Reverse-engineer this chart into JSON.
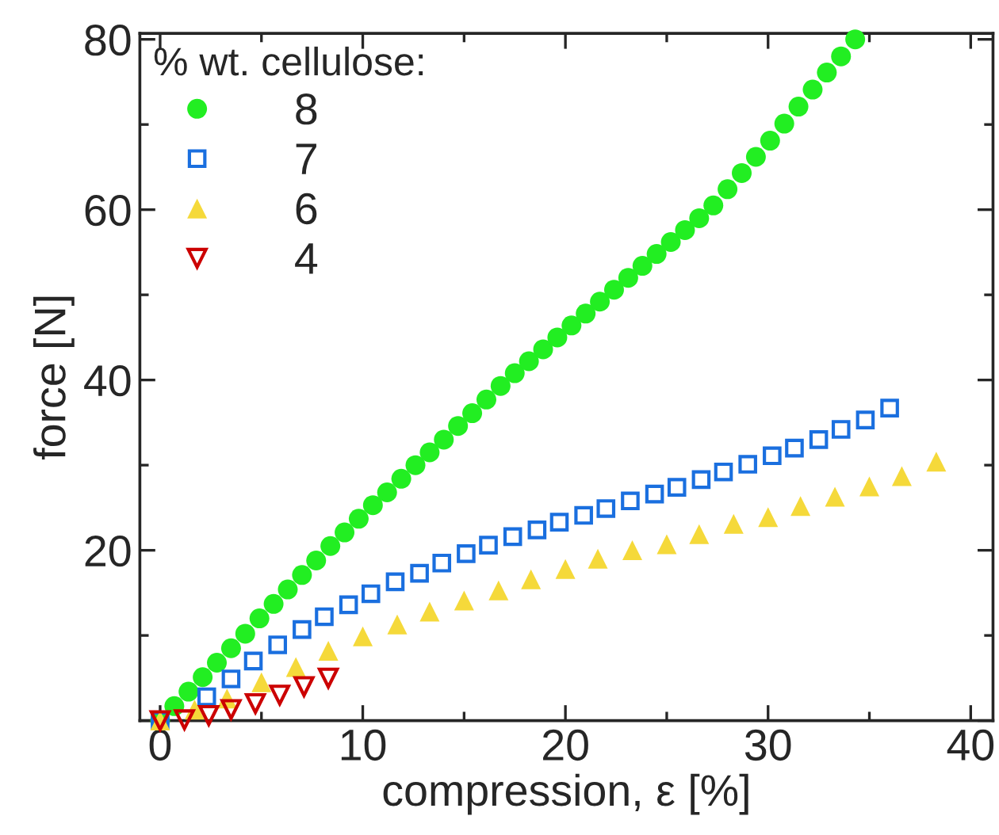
{
  "chart_data": {
    "type": "scatter",
    "xlabel": "compression, ε [%]",
    "ylabel": "force [N]",
    "legend_title": "% wt. cellulose:",
    "xlim": [
      -1,
      41.1
    ],
    "ylim": [
      0,
      80.7
    ],
    "xticks": [
      0,
      10,
      20,
      30,
      40
    ],
    "yticks": [
      {
        "value": 0,
        "label": null
      },
      20,
      40,
      60,
      80
    ],
    "grid": false,
    "legend": "top left",
    "series": [
      {
        "name": "8",
        "color": "#22ee22",
        "marker": "circle",
        "x": [
          0,
          0.7,
          1.4,
          2.1,
          2.8,
          3.5,
          4.2,
          4.9,
          5.6,
          6.3,
          7.0,
          7.7,
          8.4,
          9.1,
          9.8,
          10.5,
          11.2,
          11.9,
          12.6,
          13.3,
          14.0,
          14.7,
          15.4,
          16.1,
          16.8,
          17.5,
          18.2,
          18.9,
          19.6,
          20.3,
          21.0,
          21.7,
          22.4,
          23.1,
          23.8,
          24.5,
          25.2,
          25.9,
          26.6,
          27.3,
          28.0,
          28.7,
          29.4,
          30.1,
          30.8,
          31.5,
          32.2,
          32.9,
          33.6,
          34.3
        ],
        "values": [
          0,
          1.7,
          3.4,
          5.1,
          6.8,
          8.5,
          10.2,
          12.0,
          13.7,
          15.4,
          17.1,
          18.8,
          20.5,
          22.1,
          23.7,
          25.3,
          26.8,
          28.4,
          30.0,
          31.5,
          33.0,
          34.6,
          36.1,
          37.7,
          39.3,
          40.8,
          42.2,
          43.6,
          45.0,
          46.4,
          47.8,
          49.2,
          50.6,
          52.0,
          53.4,
          54.8,
          56.2,
          57.6,
          59.0,
          60.5,
          62.4,
          64.3,
          66.2,
          68.1,
          70.1,
          72.1,
          74.1,
          76.1,
          78.0,
          80.0
        ]
      },
      {
        "name": "7",
        "color": "#1a6fdf",
        "marker": "square",
        "x": [
          0,
          1.2,
          2.3,
          3.5,
          4.6,
          5.8,
          7.0,
          8.1,
          9.3,
          10.4,
          11.6,
          12.8,
          13.9,
          15.1,
          16.2,
          17.4,
          18.6,
          19.7,
          20.9,
          22.0,
          23.2,
          24.4,
          25.5,
          26.7,
          27.8,
          29.0,
          30.2,
          31.3,
          32.5,
          33.6,
          34.8,
          36.0
        ],
        "values": [
          0,
          null,
          2.8,
          4.9,
          7.0,
          8.9,
          10.7,
          12.2,
          13.6,
          14.9,
          16.3,
          17.3,
          18.5,
          19.6,
          20.6,
          21.6,
          22.4,
          23.3,
          24.1,
          24.9,
          25.8,
          26.6,
          27.4,
          28.3,
          29.2,
          30.1,
          31.1,
          32.0,
          33.0,
          34.2,
          35.3,
          36.7
        ]
      },
      {
        "name": "6",
        "color": "#f5d93a",
        "marker": "triangle",
        "x": [
          0,
          1.7,
          3.3,
          5.0,
          6.7,
          8.3,
          10.0,
          11.7,
          13.3,
          15.0,
          16.7,
          18.3,
          20.0,
          21.6,
          23.3,
          25.0,
          26.6,
          28.3,
          30.0,
          31.6,
          33.3,
          35.0,
          36.6,
          38.3
        ],
        "values": [
          0,
          1.3,
          2.6,
          4.5,
          6.3,
          8.2,
          9.9,
          11.3,
          12.8,
          14.1,
          15.3,
          16.6,
          17.8,
          19.0,
          20.0,
          20.7,
          21.9,
          23.1,
          23.9,
          25.2,
          26.3,
          27.5,
          28.7,
          30.4
        ]
      },
      {
        "name": "4",
        "color": "#cc0000",
        "marker": "triangle_down",
        "x": [
          0,
          1.2,
          2.4,
          3.5,
          4.7,
          5.9,
          7.1,
          8.3
        ],
        "values": [
          0,
          0.1,
          0.6,
          1.3,
          2.0,
          3.0,
          4.0,
          5.0
        ]
      }
    ]
  }
}
